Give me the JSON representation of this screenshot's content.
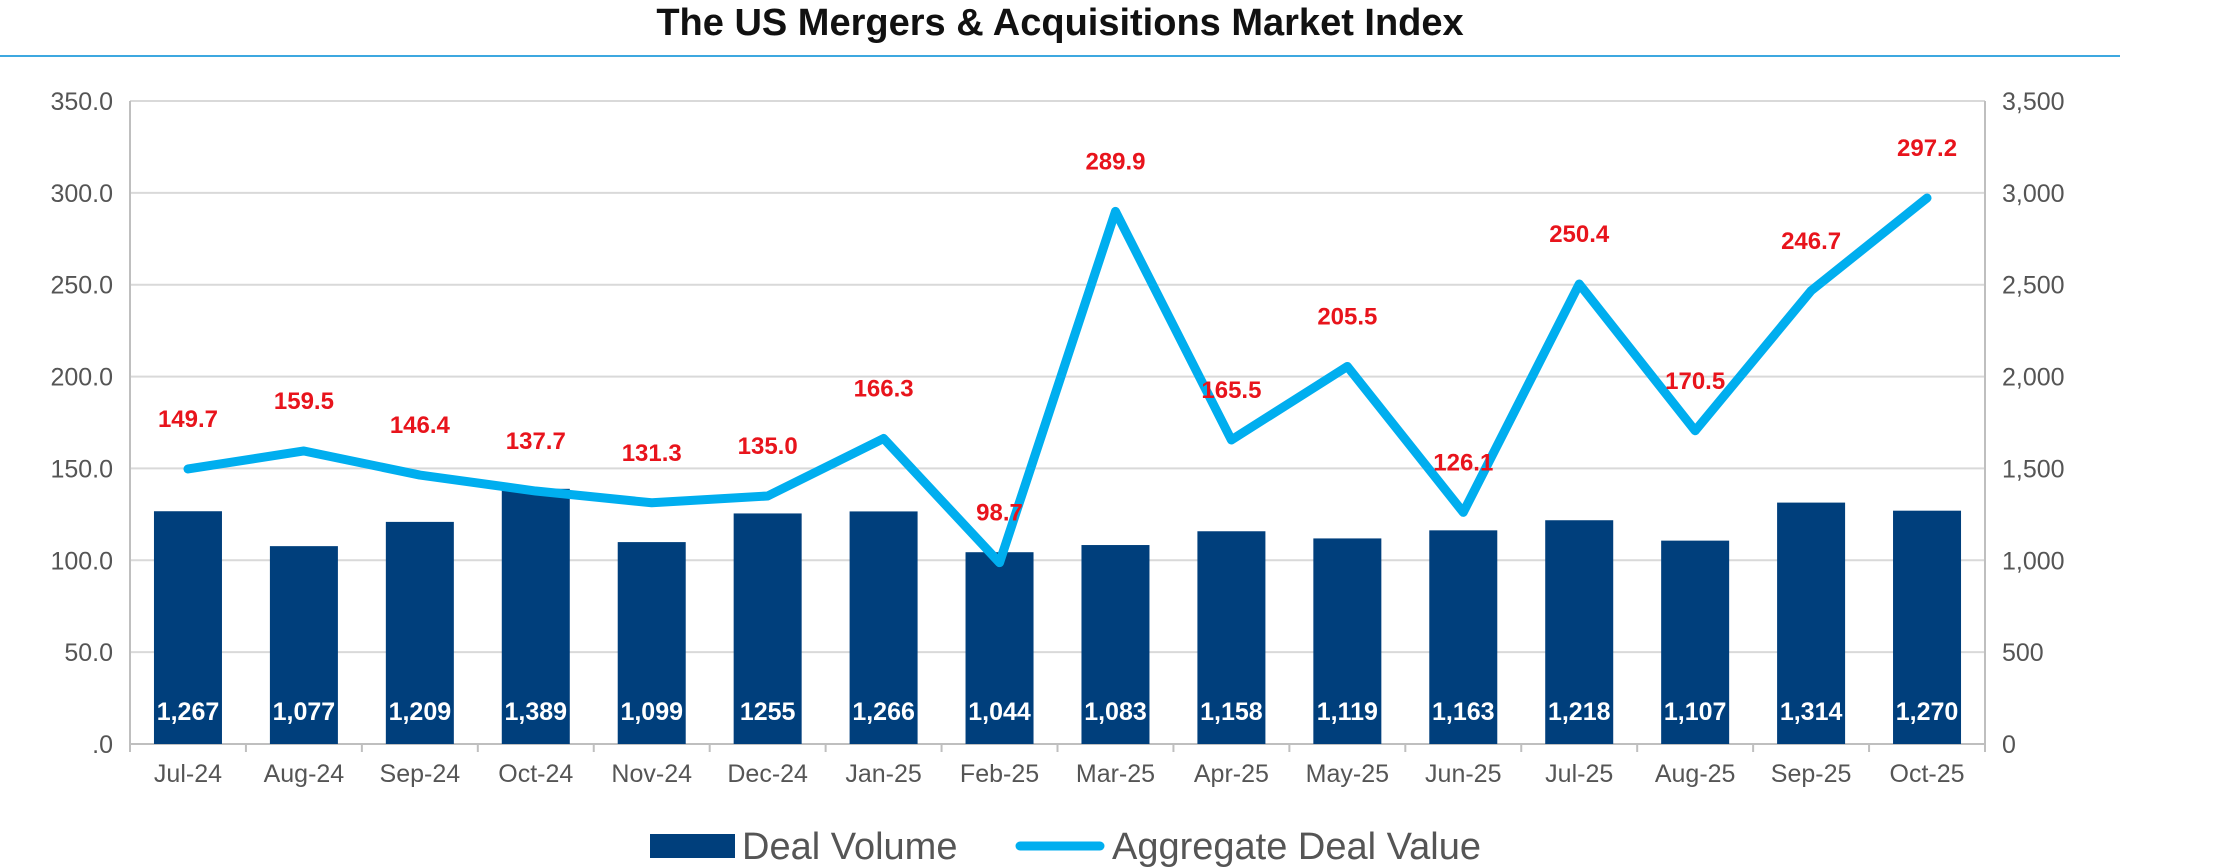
{
  "chart_data": {
    "type": "bar",
    "title": "The US Mergers & Acquisitions Market Index",
    "categories": [
      "Jul-24",
      "Aug-24",
      "Sep-24",
      "Oct-24",
      "Nov-24",
      "Dec-24",
      "Jan-25",
      "Feb-25",
      "Mar-25",
      "Apr-25",
      "May-25",
      "Jun-25",
      "Jul-25",
      "Aug-25",
      "Sep-25",
      "Oct-25"
    ],
    "series": [
      {
        "name": "Deal Volume",
        "type": "bar",
        "axis": "right",
        "color": "#003f7c",
        "values": [
          1267,
          1077,
          1209,
          1389,
          1099,
          1255,
          1266,
          1044,
          1083,
          1158,
          1119,
          1163,
          1218,
          1107,
          1314,
          1270
        ],
        "labels": [
          "1,267",
          "1,077",
          "1,209",
          "1,389",
          "1,099",
          "1255",
          "1,266",
          "1,044",
          "1,083",
          "1,158",
          "1,119",
          "1,163",
          "1,218",
          "1,107",
          "1,314",
          "1,270"
        ]
      },
      {
        "name": "Aggregate Deal Value",
        "type": "line",
        "axis": "left",
        "color": "#00aeef",
        "values": [
          149.7,
          159.5,
          146.4,
          137.7,
          131.3,
          135.0,
          166.3,
          98.7,
          289.9,
          165.5,
          205.5,
          126.1,
          250.4,
          170.5,
          246.7,
          297.2
        ],
        "labels": [
          "149.7",
          "159.5",
          "146.4",
          "137.7",
          "131.3",
          "135.0",
          "166.3",
          "98.7",
          "289.9",
          "165.5",
          "205.5",
          "126.1",
          "250.4",
          "170.5",
          "246.7",
          "297.2"
        ]
      }
    ],
    "y_left": {
      "range": [
        0,
        350
      ],
      "ticks": [
        ".0",
        "50.0",
        "100.0",
        "150.0",
        "200.0",
        "250.0",
        "300.0",
        "350.0"
      ]
    },
    "y_right": {
      "range": [
        0,
        3500
      ],
      "ticks": [
        "0",
        "500",
        "1,000",
        "1,500",
        "2,000",
        "2,500",
        "3,000",
        "3,500"
      ]
    },
    "grid": true,
    "legend": "bottom-center"
  }
}
